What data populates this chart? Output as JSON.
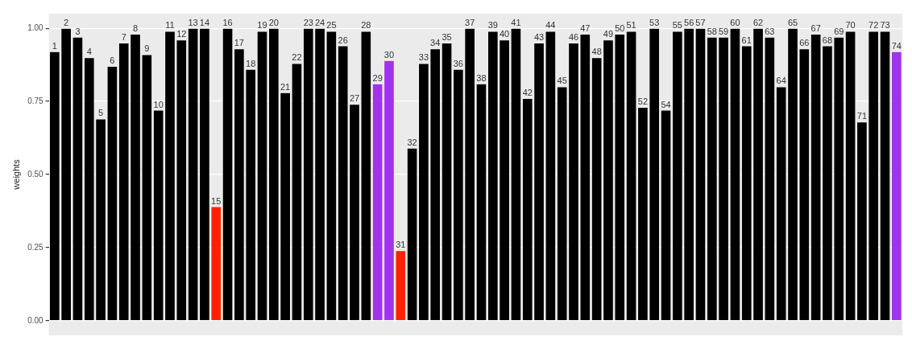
{
  "chart_data": {
    "type": "bar",
    "ylabel": "weights",
    "categories": [
      "1",
      "2",
      "3",
      "4",
      "5",
      "6",
      "7",
      "8",
      "9",
      "10",
      "11",
      "12",
      "13",
      "14",
      "15",
      "16",
      "17",
      "18",
      "19",
      "20",
      "21",
      "22",
      "23",
      "24",
      "25",
      "26",
      "27",
      "28",
      "29",
      "30",
      "31",
      "32",
      "33",
      "34",
      "35",
      "36",
      "37",
      "38",
      "39",
      "40",
      "41",
      "42",
      "43",
      "44",
      "45",
      "46",
      "47",
      "48",
      "49",
      "50",
      "51",
      "52",
      "53",
      "54",
      "55",
      "56",
      "57",
      "58",
      "59",
      "60",
      "61",
      "62",
      "63",
      "64",
      "65",
      "66",
      "67",
      "68",
      "69",
      "70",
      "71",
      "72",
      "73",
      "74"
    ],
    "values": [
      0.92,
      1.0,
      0.97,
      0.9,
      0.69,
      0.87,
      0.95,
      0.98,
      0.91,
      0.72,
      0.99,
      0.96,
      1.0,
      1.0,
      0.39,
      1.0,
      0.93,
      0.86,
      0.99,
      1.0,
      0.78,
      0.88,
      1.0,
      1.0,
      0.99,
      0.94,
      0.74,
      0.99,
      0.81,
      0.89,
      0.24,
      0.59,
      0.88,
      0.93,
      0.95,
      0.86,
      1.0,
      0.81,
      0.99,
      0.96,
      1.0,
      0.76,
      0.95,
      0.99,
      0.8,
      0.95,
      0.98,
      0.9,
      0.96,
      0.98,
      0.99,
      0.73,
      1.0,
      0.72,
      0.99,
      1.0,
      1.0,
      0.97,
      0.97,
      1.0,
      0.94,
      1.0,
      0.97,
      0.8,
      1.0,
      0.93,
      0.98,
      0.94,
      0.97,
      0.99,
      0.68,
      0.99,
      0.99,
      0.92
    ],
    "colors": [
      "#000000",
      "#000000",
      "#000000",
      "#000000",
      "#000000",
      "#000000",
      "#000000",
      "#000000",
      "#000000",
      "#000000",
      "#000000",
      "#000000",
      "#000000",
      "#000000",
      "#ff2200",
      "#000000",
      "#000000",
      "#000000",
      "#000000",
      "#000000",
      "#000000",
      "#000000",
      "#000000",
      "#000000",
      "#000000",
      "#000000",
      "#000000",
      "#000000",
      "#a033ee",
      "#a033ee",
      "#ff2200",
      "#000000",
      "#000000",
      "#000000",
      "#000000",
      "#000000",
      "#000000",
      "#000000",
      "#000000",
      "#000000",
      "#000000",
      "#000000",
      "#000000",
      "#000000",
      "#000000",
      "#000000",
      "#000000",
      "#000000",
      "#000000",
      "#000000",
      "#000000",
      "#000000",
      "#000000",
      "#000000",
      "#000000",
      "#000000",
      "#000000",
      "#000000",
      "#000000",
      "#000000",
      "#000000",
      "#000000",
      "#000000",
      "#000000",
      "#000000",
      "#000000",
      "#000000",
      "#000000",
      "#000000",
      "#000000",
      "#000000",
      "#000000",
      "#000000",
      "#a033ee"
    ],
    "ylim": [
      -0.05,
      1.05
    ],
    "yticks": [
      {
        "value": 0,
        "label": "0.00"
      },
      {
        "value": 0.25,
        "label": "0.25"
      },
      {
        "value": 0.5,
        "label": "0.50"
      },
      {
        "value": 0.75,
        "label": "0.75"
      },
      {
        "value": 1,
        "label": "1.00"
      }
    ],
    "grid": "y",
    "legend": false
  }
}
